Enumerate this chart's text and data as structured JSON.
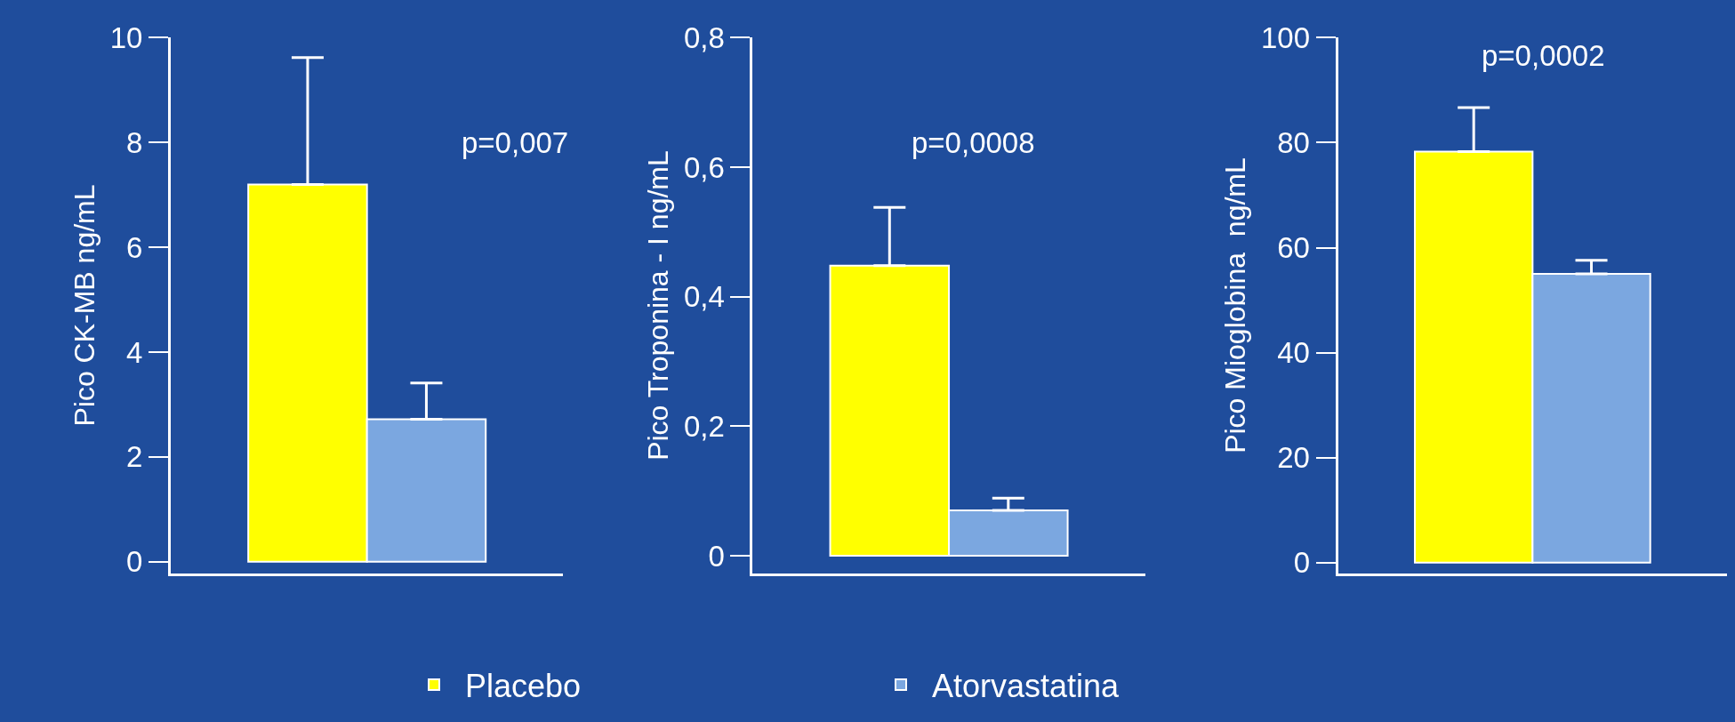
{
  "chart_data": [
    {
      "type": "bar",
      "ylabel": "Pico CK-MB ng/mL",
      "categories": [
        null
      ],
      "ylim": [
        -0.22,
        10
      ],
      "yticks": [
        0,
        2,
        4,
        6,
        8,
        10
      ],
      "grid": false,
      "legend": "bottom",
      "annotations": [
        "p=0,007"
      ],
      "series": [
        {
          "name": "Placebo",
          "color": "#ffff00",
          "values": [
            7.2
          ],
          "errors": [
            [
              7.2,
              9.62
            ]
          ]
        },
        {
          "name": "Atorvastatina",
          "color": "#7ba7e0",
          "values": [
            2.72
          ],
          "errors": [
            [
              2.72,
              3.41
            ]
          ]
        }
      ]
    },
    {
      "type": "bar",
      "ylabel": "Pico Troponina - I ng/mL",
      "categories": [
        null
      ],
      "ylim": [
        -0.027,
        0.8
      ],
      "yticks": [
        0,
        {
          "value": 0.2,
          "label": "0,2"
        },
        {
          "value": 0.4,
          "label": "0,4"
        },
        {
          "value": 0.6,
          "label": "0,6"
        },
        {
          "value": 0.8,
          "label": "0,8"
        }
      ],
      "grid": false,
      "legend": false,
      "annotations": [
        "p=0,0008"
      ],
      "series": [
        {
          "color": "#ffff00",
          "values": [
            0.448
          ],
          "errors": [
            [
              0.448,
              0.538
            ]
          ]
        },
        {
          "color": "#7ba7e0",
          "values": [
            0.07
          ],
          "errors": [
            [
              0.07,
              0.089
            ]
          ]
        }
      ]
    },
    {
      "type": "bar",
      "ylabel": "Pico Mioglobina  ng/mL",
      "categories": [
        null
      ],
      "ylim": [
        -2,
        100
      ],
      "yticks": [
        0,
        20,
        40,
        60,
        80,
        100
      ],
      "grid": false,
      "legend": false,
      "annotations": [
        "p=0,0002"
      ],
      "series": [
        {
          "color": "#ffff00",
          "values": [
            78.3
          ],
          "errors": [
            [
              78.3,
              86.7
            ]
          ]
        },
        {
          "color": "#7ba7e0",
          "values": [
            55
          ],
          "errors": [
            [
              55,
              57.6
            ]
          ]
        }
      ]
    }
  ]
}
